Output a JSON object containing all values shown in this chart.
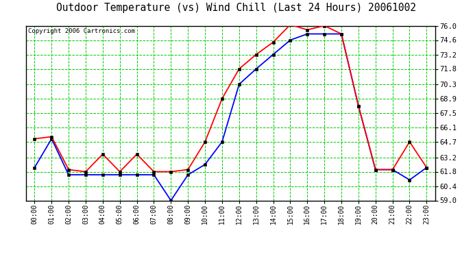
{
  "title": "Outdoor Temperature (vs) Wind Chill (Last 24 Hours) 20061002",
  "copyright": "Copyright 2006 Cartronics.com",
  "hours": [
    "00:00",
    "01:00",
    "02:00",
    "03:00",
    "04:00",
    "05:00",
    "06:00",
    "07:00",
    "08:00",
    "09:00",
    "10:00",
    "11:00",
    "12:00",
    "13:00",
    "14:00",
    "15:00",
    "16:00",
    "17:00",
    "18:00",
    "19:00",
    "20:00",
    "21:00",
    "22:00",
    "23:00"
  ],
  "red_temp": [
    65.0,
    65.2,
    62.0,
    61.8,
    63.5,
    61.8,
    63.5,
    61.8,
    61.8,
    62.0,
    64.7,
    68.9,
    71.8,
    73.2,
    74.4,
    76.1,
    75.6,
    76.0,
    75.2,
    68.2,
    62.0,
    62.0,
    64.7,
    62.2
  ],
  "blue_windchill": [
    62.2,
    65.0,
    61.5,
    61.5,
    61.5,
    61.5,
    61.5,
    61.5,
    59.0,
    61.5,
    62.5,
    64.7,
    70.3,
    71.8,
    73.2,
    74.6,
    75.2,
    75.2,
    75.2,
    68.2,
    62.0,
    62.0,
    61.0,
    62.2
  ],
  "ylim_min": 59.0,
  "ylim_max": 76.0,
  "yticks": [
    59.0,
    60.4,
    61.8,
    63.2,
    64.7,
    66.1,
    67.5,
    68.9,
    70.3,
    71.8,
    73.2,
    74.6,
    76.0
  ],
  "bg_color": "#ffffff",
  "grid_color": "#00cc00",
  "red_color": "#ff0000",
  "blue_color": "#0000ff",
  "border_color": "#000000",
  "title_fontsize": 10.5,
  "copyright_fontsize": 6.5,
  "xtick_fontsize": 7.0,
  "ytick_fontsize": 7.5
}
